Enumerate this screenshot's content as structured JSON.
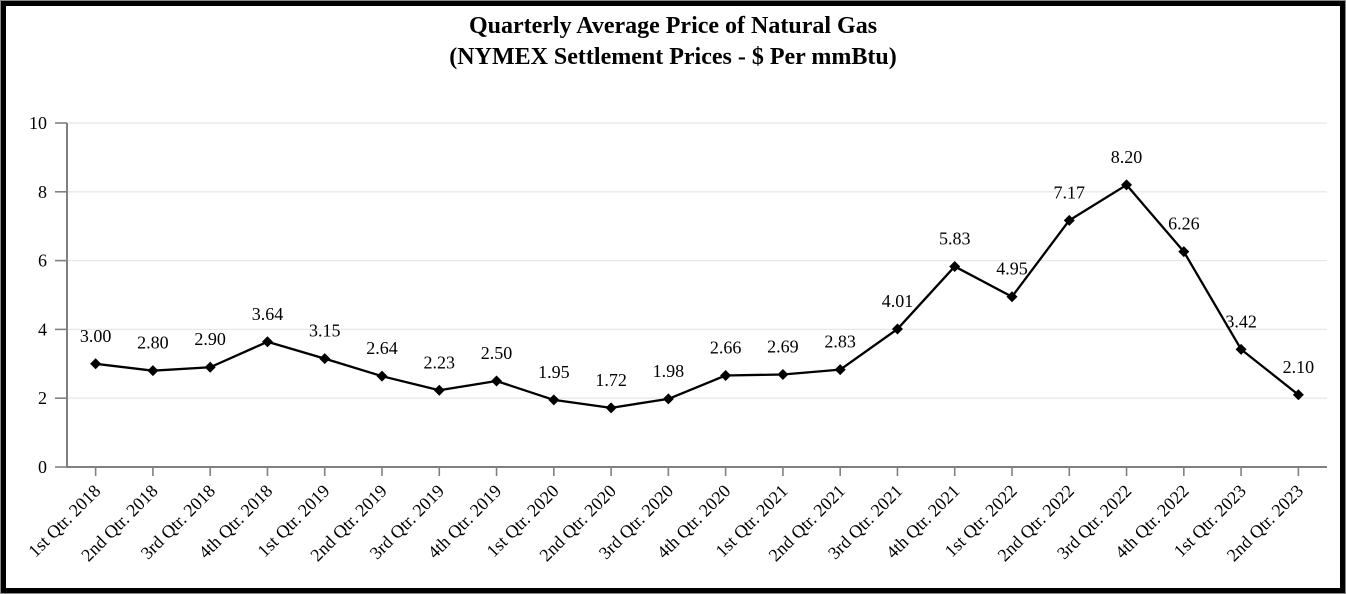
{
  "title": {
    "line1": "Quarterly Average Price of Natural Gas",
    "line2": "(NYMEX Settlement Prices - $ Per mmBtu)"
  },
  "chart_data": {
    "type": "line",
    "title": "Quarterly Average Price of Natural Gas (NYMEX Settlement Prices - $ Per mmBtu)",
    "categories": [
      "1st Qtr. 2018",
      "2nd Qtr. 2018",
      "3rd Qtr. 2018",
      "4th Qtr. 2018",
      "1st Qtr. 2019",
      "2nd Qtr. 2019",
      "3rd Qtr. 2019",
      "4th Qtr. 2019",
      "1st Qtr. 2020",
      "2nd Qtr. 2020",
      "3rd Qtr. 2020",
      "4th Qtr. 2020",
      "1st Qtr. 2021",
      "2nd Qtr. 2021",
      "3rd Qtr. 2021",
      "4th Qtr. 2021",
      "1st Qtr. 2022",
      "2nd Qtr. 2022",
      "3rd Qtr. 2022",
      "4th Qtr. 2022",
      "1st Qtr. 2023",
      "2nd Qtr. 2023"
    ],
    "values": [
      3.0,
      2.8,
      2.9,
      3.64,
      3.15,
      2.64,
      2.23,
      2.5,
      1.95,
      1.72,
      1.98,
      2.66,
      2.69,
      2.83,
      4.01,
      5.83,
      4.95,
      7.17,
      8.2,
      6.26,
      3.42,
      2.1
    ],
    "point_labels": [
      "3.00",
      "2.80",
      "2.90",
      "3.64",
      "3.15",
      "2.64",
      "2.23",
      "2.50",
      "1.95",
      "1.72",
      "1.98",
      "2.66",
      "2.69",
      "2.83",
      "4.01",
      "5.83",
      "4.95",
      "7.17",
      "8.20",
      "6.26",
      "3.42",
      "2.10"
    ],
    "xlabel": "",
    "ylabel": "",
    "ylim": [
      0,
      10
    ],
    "y_ticks": [
      0,
      2,
      4,
      6,
      8,
      10
    ],
    "grid": "horizontal",
    "legend": "none",
    "marker": "diamond",
    "colors": {
      "series": "#000000",
      "marker": "#000000",
      "axis": "#808080",
      "gridline": "#e8e8e8",
      "text": "#000000",
      "frame": "#000000",
      "background": "#ffffff"
    }
  }
}
